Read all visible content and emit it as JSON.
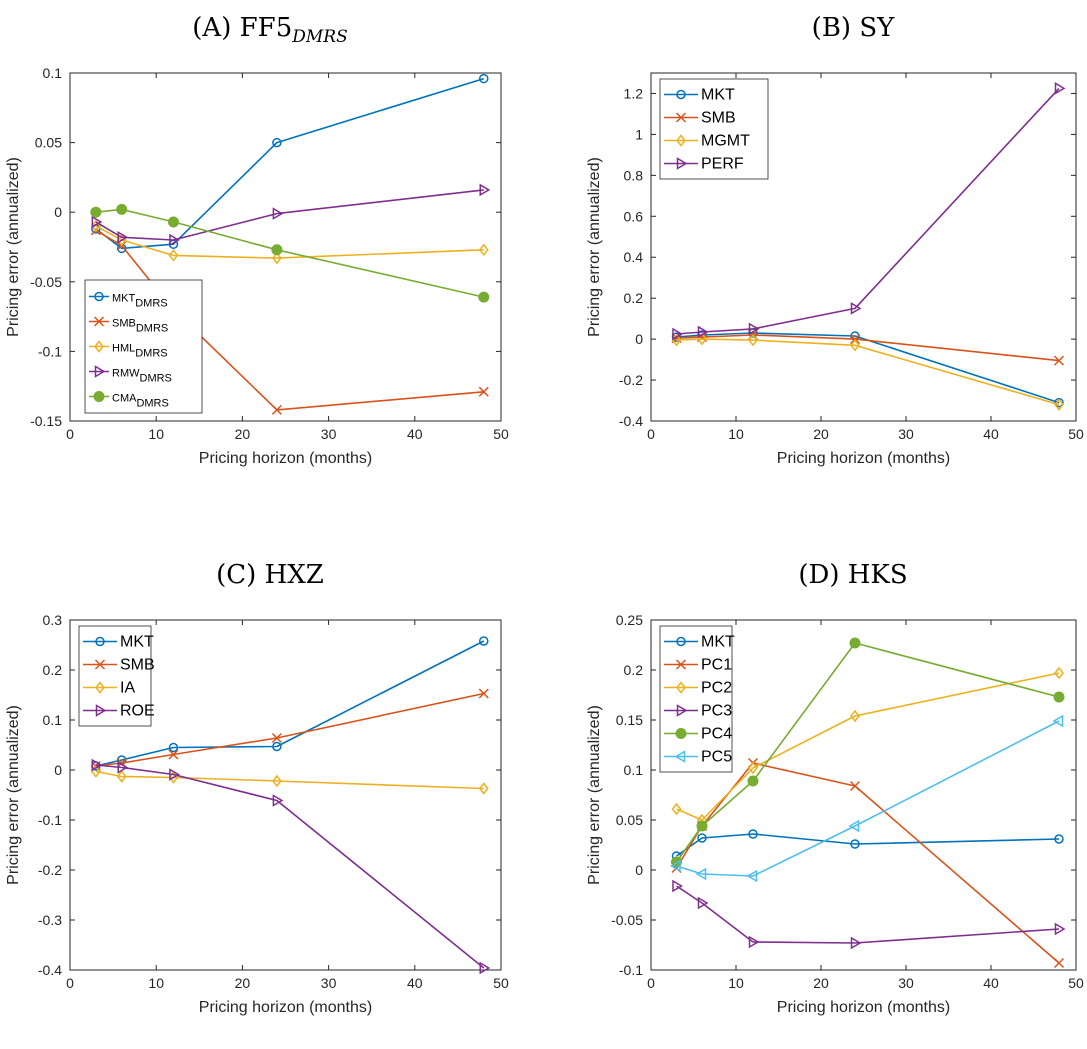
{
  "chart_data": [
    {
      "type": "line",
      "title": "(A) FF5",
      "title_sub": "DMRS",
      "xlabel": "Pricing horizon (months)",
      "ylabel": "Pricing error (annualized)",
      "xlim": [
        0,
        50
      ],
      "ylim": [
        -0.15,
        0.1
      ],
      "xticks": [
        0,
        10,
        20,
        30,
        40,
        50
      ],
      "yticks": [
        -0.15,
        -0.1,
        -0.05,
        0,
        0.05,
        0.1
      ],
      "ytick_labels": [
        "-0.15",
        "-0.1",
        "-0.05",
        "0",
        "0.05",
        "0.1"
      ],
      "legend_position": "bottom-left",
      "legend_small": true,
      "x": [
        3,
        6,
        12,
        24,
        48
      ],
      "series": [
        {
          "name": "MKT",
          "sub": "DMRS",
          "color": "#0072BD",
          "marker": "circle",
          "values": [
            -0.012,
            -0.026,
            -0.023,
            0.05,
            0.096
          ]
        },
        {
          "name": "SMB",
          "sub": "DMRS",
          "color": "#D95319",
          "marker": "x",
          "values": [
            -0.013,
            -0.024,
            -0.07,
            -0.142,
            -0.129
          ]
        },
        {
          "name": "HML",
          "sub": "DMRS",
          "color": "#EDB120",
          "marker": "diamond",
          "values": [
            -0.01,
            -0.02,
            -0.031,
            -0.033,
            -0.027
          ]
        },
        {
          "name": "RMW",
          "sub": "DMRS",
          "color": "#7E2F8E",
          "marker": "triangle-right",
          "values": [
            -0.007,
            -0.018,
            -0.02,
            -0.001,
            0.016
          ]
        },
        {
          "name": "CMA",
          "sub": "DMRS",
          "color": "#77AC30",
          "marker": "filled-circle",
          "values": [
            0.0,
            0.002,
            -0.007,
            -0.027,
            -0.061
          ]
        }
      ]
    },
    {
      "type": "line",
      "title": "(B) SY",
      "title_sub": "",
      "xlabel": "Pricing horizon (months)",
      "ylabel": "Pricing error (annualized)",
      "xlim": [
        0,
        50
      ],
      "ylim": [
        -0.4,
        1.3
      ],
      "xticks": [
        0,
        10,
        20,
        30,
        40,
        50
      ],
      "yticks": [
        -0.4,
        -0.2,
        0,
        0.2,
        0.4,
        0.6,
        0.8,
        1,
        1.2
      ],
      "ytick_labels": [
        "-0.4",
        "-0.2",
        "0",
        "0.2",
        "0.4",
        "0.6",
        "0.8",
        "1",
        "1.2"
      ],
      "legend_position": "top-left",
      "legend_small": false,
      "x": [
        3,
        6,
        12,
        24,
        48
      ],
      "series": [
        {
          "name": "MKT",
          "color": "#0072BD",
          "marker": "circle",
          "values": [
            0.01,
            0.02,
            0.03,
            0.015,
            -0.31
          ]
        },
        {
          "name": "SMB",
          "color": "#D95319",
          "marker": "x",
          "values": [
            0.005,
            0.01,
            0.02,
            0.0,
            -0.105
          ]
        },
        {
          "name": "MGMT",
          "color": "#EDB120",
          "marker": "diamond",
          "values": [
            -0.005,
            0.0,
            -0.005,
            -0.03,
            -0.32
          ]
        },
        {
          "name": "PERF",
          "color": "#7E2F8E",
          "marker": "triangle-right",
          "values": [
            0.025,
            0.035,
            0.05,
            0.15,
            1.225
          ]
        }
      ]
    },
    {
      "type": "line",
      "title": "(C) HXZ",
      "title_sub": "",
      "xlabel": "Pricing horizon (months)",
      "ylabel": "Pricing error (annualized)",
      "xlim": [
        0,
        50
      ],
      "ylim": [
        -0.4,
        0.3
      ],
      "xticks": [
        0,
        10,
        20,
        30,
        40,
        50
      ],
      "yticks": [
        -0.4,
        -0.3,
        -0.2,
        -0.1,
        0,
        0.1,
        0.2,
        0.3
      ],
      "ytick_labels": [
        "-0.4",
        "-0.3",
        "-0.2",
        "-0.1",
        "0",
        "0.1",
        "0.2",
        "0.3"
      ],
      "legend_position": "top-left",
      "legend_small": false,
      "x": [
        3,
        6,
        12,
        24,
        48
      ],
      "series": [
        {
          "name": "MKT",
          "color": "#0072BD",
          "marker": "circle",
          "values": [
            0.008,
            0.02,
            0.045,
            0.047,
            0.258
          ]
        },
        {
          "name": "SMB",
          "color": "#D95319",
          "marker": "x",
          "values": [
            0.008,
            0.014,
            0.031,
            0.064,
            0.153
          ]
        },
        {
          "name": "IA",
          "color": "#EDB120",
          "marker": "diamond",
          "values": [
            -0.003,
            -0.013,
            -0.015,
            -0.022,
            -0.037
          ]
        },
        {
          "name": "ROE",
          "color": "#7E2F8E",
          "marker": "triangle-right",
          "values": [
            0.01,
            0.005,
            -0.009,
            -0.061,
            -0.396
          ]
        }
      ]
    },
    {
      "type": "line",
      "title": "(D) HKS",
      "title_sub": "",
      "xlabel": "Pricing horizon (months)",
      "ylabel": "Pricing error (annualized)",
      "xlim": [
        0,
        50
      ],
      "ylim": [
        -0.1,
        0.25
      ],
      "xticks": [
        0,
        10,
        20,
        30,
        40,
        50
      ],
      "yticks": [
        -0.1,
        -0.05,
        0,
        0.05,
        0.1,
        0.15,
        0.2,
        0.25
      ],
      "ytick_labels": [
        "-0.1",
        "-0.05",
        "0",
        "0.05",
        "0.1",
        "0.15",
        "0.2",
        "0.25"
      ],
      "legend_position": "top-left",
      "legend_small": false,
      "x": [
        3,
        6,
        12,
        24,
        48
      ],
      "series": [
        {
          "name": "MKT",
          "color": "#0072BD",
          "marker": "circle",
          "values": [
            0.014,
            0.032,
            0.036,
            0.026,
            0.031
          ]
        },
        {
          "name": "PC1",
          "color": "#D95319",
          "marker": "x",
          "values": [
            0.002,
            0.044,
            0.107,
            0.084,
            -0.093
          ]
        },
        {
          "name": "PC2",
          "color": "#EDB120",
          "marker": "diamond",
          "values": [
            0.061,
            0.05,
            0.102,
            0.154,
            0.197
          ]
        },
        {
          "name": "PC3",
          "color": "#7E2F8E",
          "marker": "triangle-right",
          "values": [
            -0.016,
            -0.033,
            -0.072,
            -0.073,
            -0.059
          ]
        },
        {
          "name": "PC4",
          "color": "#77AC30",
          "marker": "filled-circle",
          "values": [
            0.008,
            0.044,
            0.089,
            0.227,
            0.173
          ]
        },
        {
          "name": "PC5",
          "color": "#4DBEEE",
          "marker": "triangle-left",
          "values": [
            0.004,
            -0.004,
            -0.006,
            0.044,
            0.149
          ]
        }
      ]
    }
  ]
}
